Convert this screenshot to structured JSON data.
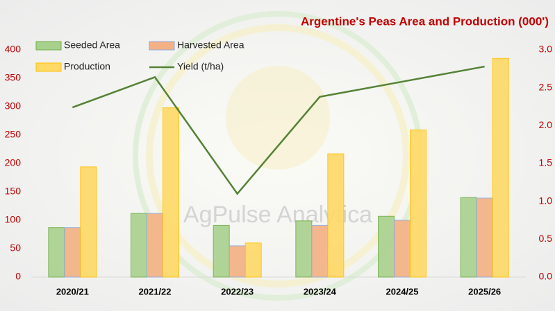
{
  "chart_data": {
    "type": "bar",
    "title": "Argentine's Peas Area and Production (000')",
    "watermark": "AgPulse Analytica",
    "categories": [
      "2020/21",
      "2021/22",
      "2022/23",
      "2023/24",
      "2024/25",
      "2025/26"
    ],
    "series": [
      {
        "name": "Seeded Area",
        "color": "#a9d18e",
        "values": [
          87,
          112,
          91,
          99,
          107,
          140
        ]
      },
      {
        "name": "Harvested Area",
        "color": "#f4b183",
        "values": [
          87,
          112,
          55,
          91,
          100,
          139
        ]
      },
      {
        "name": "Production",
        "color": "#ffd966",
        "values": [
          194,
          298,
          60,
          217,
          259,
          385
        ]
      },
      {
        "name": "Yield (t/ha)",
        "color": "#548235",
        "type": "line",
        "axis": "y2",
        "values": [
          2.24,
          2.64,
          1.1,
          2.38,
          2.58,
          2.78
        ]
      }
    ],
    "ylim": [
      0,
      400
    ],
    "yticks": [
      0,
      50,
      100,
      150,
      200,
      250,
      300,
      350,
      400
    ],
    "y2lim": [
      0,
      3
    ],
    "y2ticks": [
      {
        "value": 0,
        "label": "0.0"
      },
      0.5,
      {
        "value": 1,
        "label": "1.0"
      },
      1.5,
      {
        "value": 2,
        "label": "2.0"
      },
      2.5,
      {
        "value": 3,
        "label": "3.0"
      }
    ],
    "grid": false
  }
}
